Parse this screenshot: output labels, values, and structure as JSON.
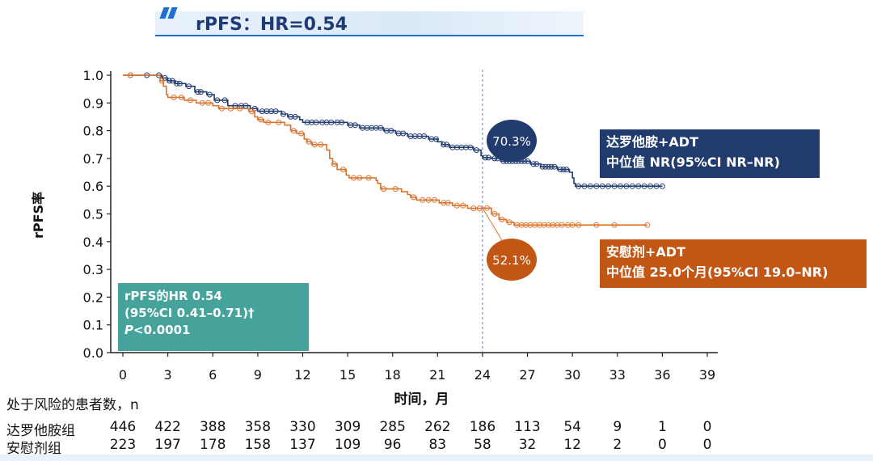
{
  "header": {
    "title": "rPFS：HR=0.54"
  },
  "chart_data": {
    "type": "line",
    "xlabel": "时间，月",
    "ylabel": "rPFS率",
    "xlim": [
      0,
      39
    ],
    "ylim": [
      0,
      1.0
    ],
    "x_ticks": [
      "0",
      "3",
      "6",
      "9",
      "12",
      "15",
      "18",
      "21",
      "24",
      "27",
      "30",
      "33",
      "36",
      "39"
    ],
    "y_ticks": [
      "0.0",
      "0.1",
      "0.2",
      "0.3",
      "0.4",
      "0.5",
      "0.6",
      "0.7",
      "0.8",
      "0.9",
      "1.0"
    ],
    "reference_line_x": 24,
    "series": [
      {
        "name": "达罗他胺+ADT",
        "color": "#233d72",
        "step_points": [
          [
            0,
            1.0
          ],
          [
            2.6,
            0.99
          ],
          [
            3.0,
            0.98
          ],
          [
            3.5,
            0.97
          ],
          [
            4.2,
            0.96
          ],
          [
            4.8,
            0.94
          ],
          [
            5.6,
            0.93
          ],
          [
            6.1,
            0.91
          ],
          [
            7.0,
            0.89
          ],
          [
            8.5,
            0.88
          ],
          [
            9.0,
            0.87
          ],
          [
            10.6,
            0.86
          ],
          [
            11.0,
            0.85
          ],
          [
            11.8,
            0.84
          ],
          [
            12.0,
            0.83
          ],
          [
            15.0,
            0.82
          ],
          [
            15.8,
            0.81
          ],
          [
            17.4,
            0.8
          ],
          [
            18.2,
            0.79
          ],
          [
            19.0,
            0.78
          ],
          [
            20.4,
            0.77
          ],
          [
            21.0,
            0.76
          ],
          [
            21.3,
            0.75
          ],
          [
            21.8,
            0.74
          ],
          [
            23.4,
            0.73
          ],
          [
            23.9,
            0.71
          ],
          [
            24.0,
            0.703
          ],
          [
            24.6,
            0.7
          ],
          [
            25.2,
            0.69
          ],
          [
            27.2,
            0.68
          ],
          [
            27.9,
            0.67
          ],
          [
            29.0,
            0.66
          ],
          [
            29.8,
            0.65
          ],
          [
            30.0,
            0.63
          ],
          [
            30.1,
            0.61
          ],
          [
            30.2,
            0.6
          ],
          [
            36.0,
            0.6
          ]
        ],
        "censor_x": [
          0.5,
          1.6,
          2.4,
          2.8,
          3.1,
          3.3,
          3.6,
          3.8,
          4.4,
          5.0,
          5.2,
          5.8,
          6.3,
          6.8,
          7.5,
          7.9,
          8.2,
          8.8,
          9.3,
          9.6,
          9.9,
          10.2,
          10.7,
          11.2,
          11.5,
          12.3,
          12.6,
          12.9,
          13.3,
          13.6,
          13.9,
          14.3,
          14.6,
          15.2,
          15.5,
          16.0,
          16.3,
          16.6,
          16.9,
          17.2,
          17.6,
          17.9,
          18.4,
          18.7,
          19.2,
          19.5,
          19.8,
          20.1,
          20.6,
          20.9,
          21.4,
          21.6,
          22.0,
          22.3,
          22.6,
          22.9,
          23.2,
          23.6,
          24.2,
          24.4,
          24.8,
          25.0,
          25.4,
          25.6,
          25.8,
          26.0,
          26.2,
          26.4,
          26.6,
          26.8,
          27.0,
          27.4,
          27.6,
          28.0,
          28.2,
          28.4,
          28.6,
          28.8,
          29.2,
          29.4,
          29.6,
          30.4,
          30.8,
          31.2,
          31.6,
          32.0,
          32.4,
          32.8,
          33.2,
          33.6,
          34.0,
          34.4,
          34.8,
          35.2,
          35.6,
          36.0
        ]
      },
      {
        "name": "安慰剂+ADT",
        "color": "#d9742f",
        "step_points": [
          [
            0,
            1.0
          ],
          [
            2.5,
            0.98
          ],
          [
            2.7,
            0.96
          ],
          [
            2.9,
            0.93
          ],
          [
            3.0,
            0.92
          ],
          [
            4.1,
            0.91
          ],
          [
            4.9,
            0.9
          ],
          [
            6.0,
            0.89
          ],
          [
            6.4,
            0.88
          ],
          [
            8.4,
            0.87
          ],
          [
            8.8,
            0.85
          ],
          [
            9.0,
            0.84
          ],
          [
            9.4,
            0.83
          ],
          [
            10.8,
            0.82
          ],
          [
            11.2,
            0.8
          ],
          [
            11.6,
            0.79
          ],
          [
            12.1,
            0.77
          ],
          [
            12.3,
            0.76
          ],
          [
            12.6,
            0.75
          ],
          [
            13.6,
            0.73
          ],
          [
            13.8,
            0.7
          ],
          [
            14.0,
            0.68
          ],
          [
            14.3,
            0.66
          ],
          [
            14.9,
            0.64
          ],
          [
            15.1,
            0.63
          ],
          [
            16.9,
            0.62
          ],
          [
            17.0,
            0.61
          ],
          [
            17.2,
            0.59
          ],
          [
            18.6,
            0.58
          ],
          [
            19.0,
            0.57
          ],
          [
            19.2,
            0.56
          ],
          [
            19.6,
            0.55
          ],
          [
            21.1,
            0.54
          ],
          [
            22.0,
            0.53
          ],
          [
            23.0,
            0.52
          ],
          [
            24.0,
            0.521
          ],
          [
            24.6,
            0.5
          ],
          [
            25.1,
            0.48
          ],
          [
            25.6,
            0.47
          ],
          [
            26.1,
            0.46
          ],
          [
            35.0,
            0.46
          ]
        ],
        "censor_x": [
          0.5,
          2.6,
          3.4,
          3.9,
          4.5,
          5.3,
          5.7,
          6.6,
          7.2,
          7.8,
          8.6,
          9.2,
          9.7,
          10.4,
          11.4,
          11.9,
          12.4,
          12.8,
          13.2,
          14.1,
          14.7,
          15.4,
          15.8,
          16.4,
          17.4,
          18.2,
          19.4,
          20.0,
          20.4,
          20.8,
          21.4,
          21.7,
          22.3,
          22.7,
          23.4,
          23.8,
          24.3,
          24.8,
          25.3,
          25.8,
          26.3,
          26.6,
          26.9,
          27.2,
          27.5,
          27.8,
          28.1,
          28.4,
          28.7,
          29.0,
          29.3,
          29.7,
          30.0,
          30.4,
          31.6,
          32.8,
          35.0
        ]
      }
    ],
    "annotations": {
      "control_rate_24mo": "52.1%",
      "darolutamide_rate_24mo": "70.3%"
    }
  },
  "hr_box": {
    "line1": "rPFS的HR 0.54",
    "line2": "(95%CI 0.41–0.71)†",
    "line3_p": "P",
    "line3_rest": "<0.0001",
    "color": "#45a39c"
  },
  "legend": {
    "darolutamide": {
      "line1": "达罗他胺+ADT",
      "line2": "中位值 NR(95%CI NR–NR)",
      "color": "#213b6e"
    },
    "placebo": {
      "line1": "安慰剂+ADT",
      "line2": "中位值 25.0个月(95%CI 19.0–NR)",
      "color": "#c25614"
    }
  },
  "risk_table": {
    "title": "处于风险的患者数，n",
    "rows": [
      {
        "label": "达罗他胺组",
        "values": [
          "446",
          "422",
          "388",
          "358",
          "330",
          "309",
          "285",
          "262",
          "186",
          "113",
          "54",
          "9",
          "1",
          "0"
        ]
      },
      {
        "label": "安慰剂组",
        "values": [
          "223",
          "197",
          "178",
          "158",
          "137",
          "109",
          "96",
          "83",
          "58",
          "32",
          "12",
          "2",
          "0",
          "0"
        ]
      }
    ]
  }
}
